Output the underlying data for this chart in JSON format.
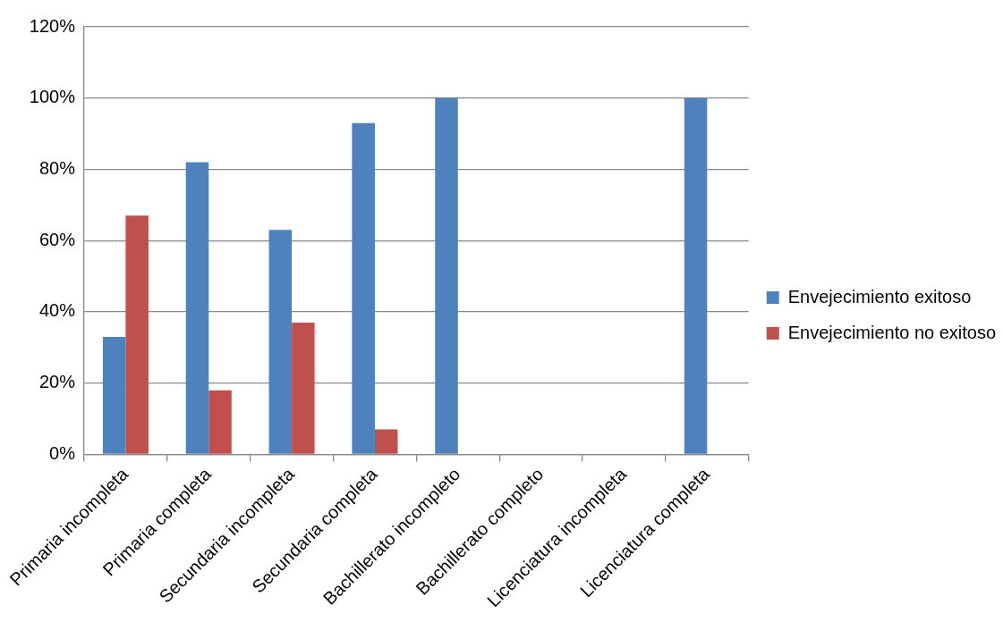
{
  "chart_data": {
    "type": "bar",
    "categories": [
      "Primaria incompleta",
      "Primaria completa",
      "Secundaria incompleta",
      "Secundaria completa",
      "Bachillerato incompleto",
      "Bachillerato completo",
      "Licenciatura incompleta",
      "Licenciatura completa"
    ],
    "series": [
      {
        "name": "Envejecimiento exitoso",
        "color": "#4f81bd",
        "values": [
          33,
          82,
          63,
          93,
          100,
          0,
          0,
          100
        ]
      },
      {
        "name": "Envejecimiento no exitoso",
        "color": "#c0504d",
        "values": [
          67,
          18,
          37,
          7,
          0,
          0,
          0,
          0
        ]
      }
    ],
    "ylim": [
      0,
      120
    ],
    "yticks": [
      {
        "value": 0,
        "label": "0%"
      },
      {
        "value": 20,
        "label": "20%"
      },
      {
        "value": 40,
        "label": "40%"
      },
      {
        "value": 60,
        "label": "60%"
      },
      {
        "value": 80,
        "label": "80%"
      },
      {
        "value": 100,
        "label": "100%"
      },
      {
        "value": 120,
        "label": "120%"
      }
    ],
    "grid": "y",
    "legend": "right"
  }
}
